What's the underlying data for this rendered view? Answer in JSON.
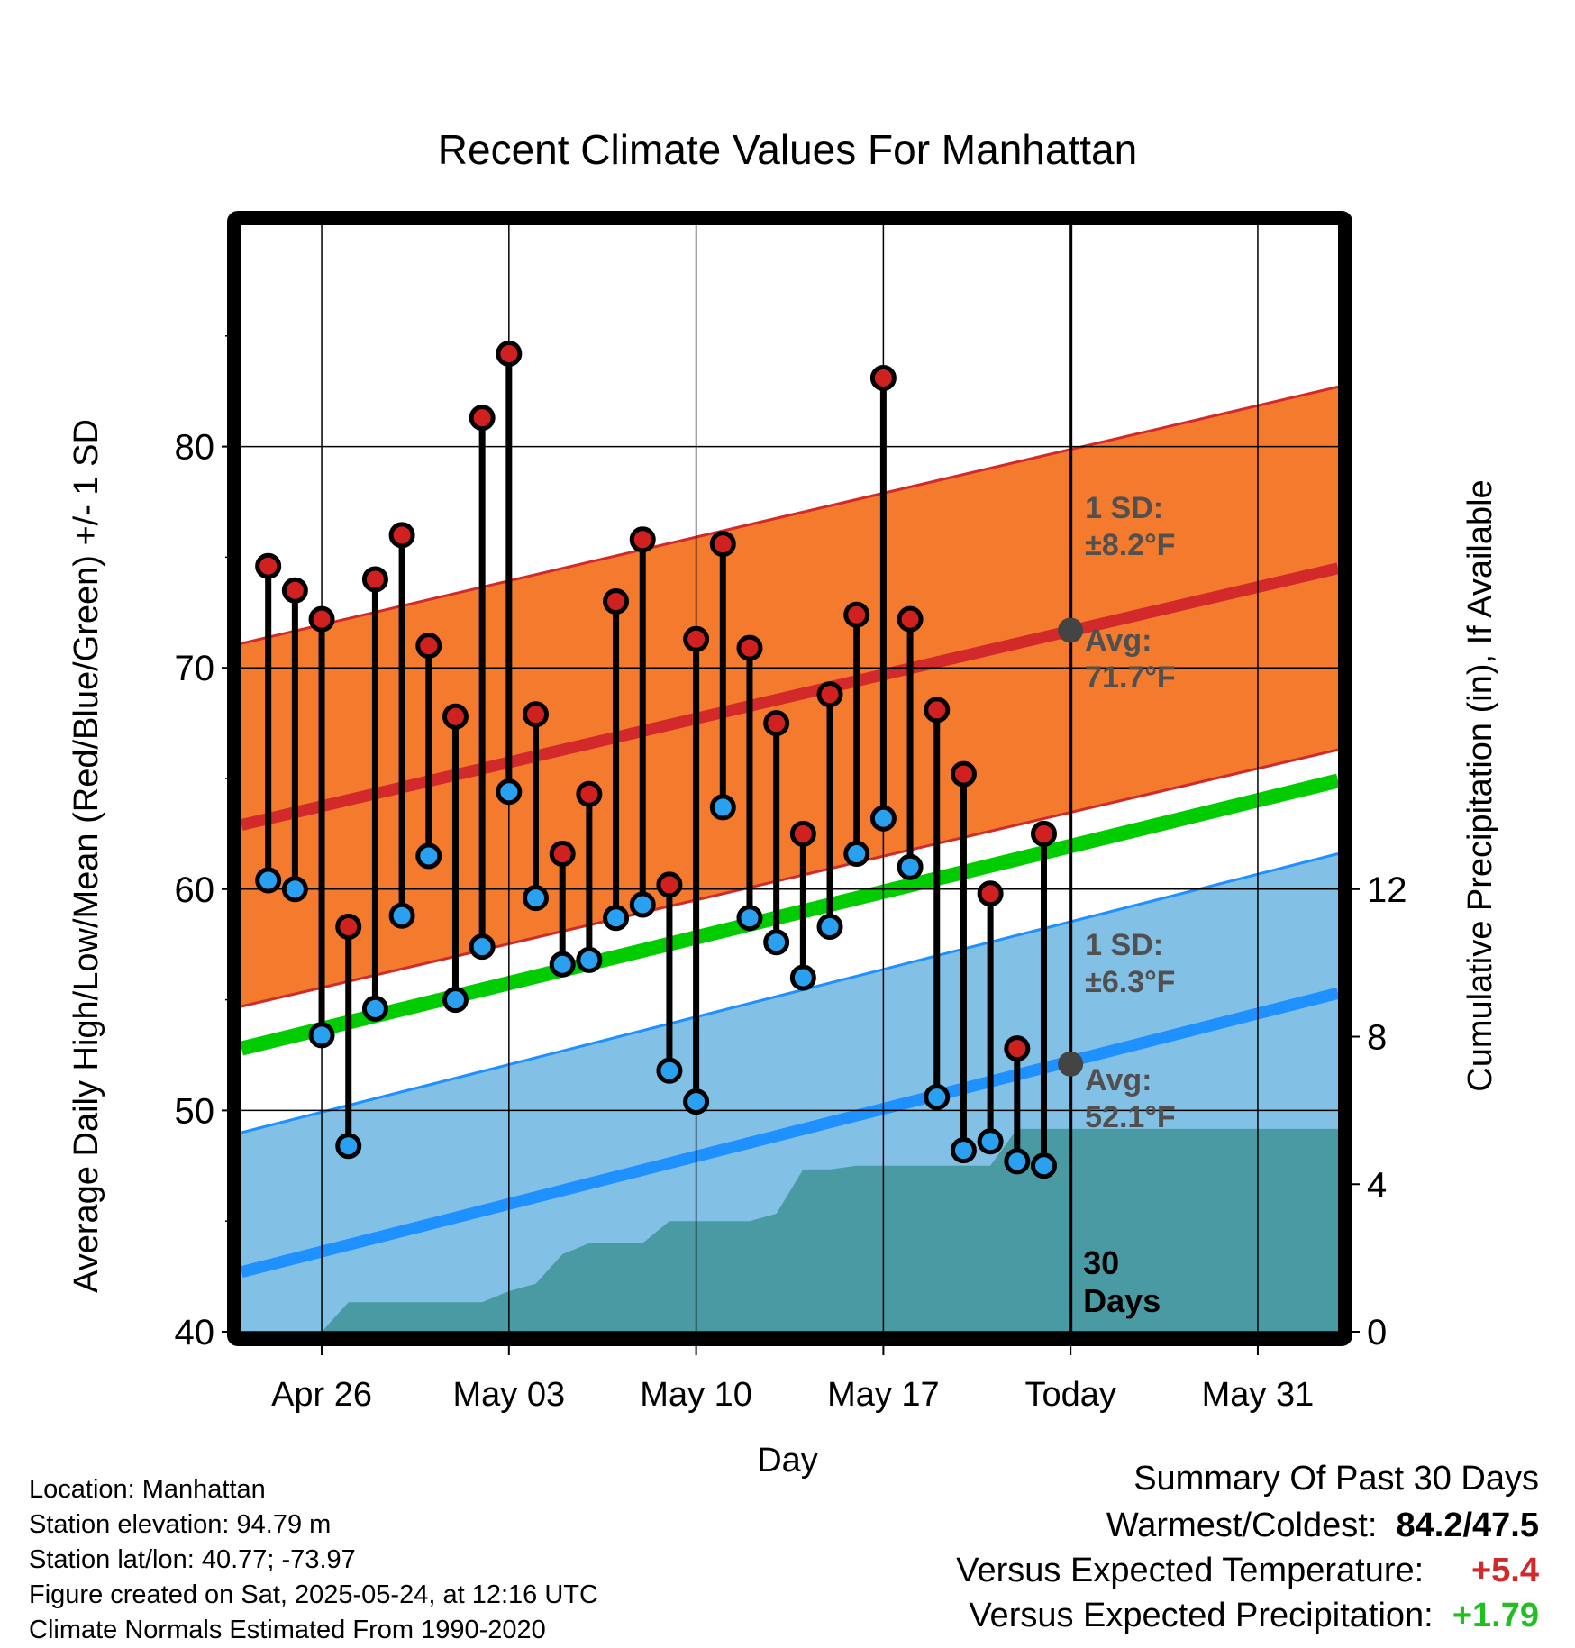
{
  "chart_data": {
    "type": "line",
    "title": "Recent Climate Values For Manhattan",
    "xlabel": "Day",
    "ylabel": "Average Daily High/Low/Mean (Red/Blue/Green) +/- 1 SD",
    "y2label": "Cumulative Precipitation (in), If Available",
    "ylim": [
      40,
      90
    ],
    "y2lim": [
      0,
      30
    ],
    "yticks": [
      40,
      50,
      60,
      70,
      80
    ],
    "y2ticks": [
      0,
      4,
      8,
      12
    ],
    "x_tick_labels": [
      "Apr 26",
      "May 03",
      "May 10",
      "May 17",
      "Today",
      "May 31"
    ],
    "x_tick_dates": [
      "2025-04-26",
      "2025-05-03",
      "2025-05-10",
      "2025-05-17",
      "2025-05-24",
      "2025-05-31"
    ],
    "xlim": [
      "2025-04-23",
      "2025-06-03"
    ],
    "today": "2025-05-24",
    "grid": true,
    "dates": [
      "2025-04-24",
      "2025-04-25",
      "2025-04-26",
      "2025-04-27",
      "2025-04-28",
      "2025-04-29",
      "2025-04-30",
      "2025-05-01",
      "2025-05-02",
      "2025-05-03",
      "2025-05-04",
      "2025-05-05",
      "2025-05-06",
      "2025-05-07",
      "2025-05-08",
      "2025-05-09",
      "2025-05-10",
      "2025-05-11",
      "2025-05-12",
      "2025-05-13",
      "2025-05-14",
      "2025-05-15",
      "2025-05-16",
      "2025-05-17",
      "2025-05-18",
      "2025-05-19",
      "2025-05-20",
      "2025-05-21",
      "2025-05-22",
      "2025-05-23"
    ],
    "high": [
      74.6,
      73.5,
      72.2,
      58.3,
      74.0,
      76.0,
      71.0,
      67.8,
      81.3,
      84.2,
      67.9,
      61.6,
      64.3,
      73.0,
      75.8,
      60.2,
      71.3,
      75.6,
      70.9,
      67.5,
      62.5,
      68.8,
      72.4,
      83.1,
      72.2,
      68.1,
      65.2,
      59.8,
      52.8,
      62.5
    ],
    "low": [
      60.4,
      60.0,
      53.4,
      48.4,
      54.6,
      58.8,
      61.5,
      55.0,
      57.4,
      64.4,
      59.6,
      56.6,
      56.8,
      58.7,
      59.3,
      51.8,
      50.4,
      63.7,
      58.7,
      57.6,
      56.0,
      58.3,
      61.6,
      63.2,
      61.0,
      50.6,
      48.2,
      48.6,
      47.7,
      47.5
    ],
    "normal_high": {
      "start": 62.9,
      "end": 74.5,
      "sd": 8.2,
      "today_value": 71.7
    },
    "normal_low": {
      "start": 42.7,
      "end": 55.3,
      "sd": 6.3,
      "today_value": 52.1
    },
    "normal_mean": {
      "start": 52.8,
      "end": 64.9
    },
    "precip_cumulative": [
      0.0,
      0.0,
      0.0,
      0.8,
      0.8,
      0.8,
      0.8,
      0.8,
      0.8,
      1.1,
      1.3,
      2.1,
      2.4,
      2.4,
      2.4,
      3.0,
      3.0,
      3.0,
      3.0,
      3.2,
      4.4,
      4.4,
      4.5,
      4.5,
      4.5,
      4.5,
      4.5,
      4.5,
      5.5,
      5.5
    ],
    "annotations": {
      "high_sd_line1": "1 SD:",
      "high_sd_line2": "±8.2°F",
      "high_avg_line1": "Avg:",
      "high_avg_line2": "71.7°F",
      "low_sd_line1": "1 SD:",
      "low_sd_line2": "±6.3°F",
      "low_avg_line1": "Avg:",
      "low_avg_line2": "52.1°F",
      "days_line1": "30",
      "days_line2": "Days"
    },
    "colors": {
      "high_band": "#f47a2e",
      "high_line": "#d22a2a",
      "low_band": "#82c0e6",
      "low_line": "#1e90ff",
      "mean_line": "#00cc00",
      "precip": "#4a9aa4",
      "high_dot": "#d02020",
      "low_dot": "#2aa0f0",
      "annotation": "#505050"
    }
  },
  "info": {
    "location": "Location: Manhattan",
    "elevation": "Station elevation: 94.79 m",
    "latlon": "Station lat/lon: 40.77; -73.97",
    "created": "Figure created on Sat, 2025-05-24, at 12:16 UTC",
    "normals": "Climate Normals Estimated From 1990-2020"
  },
  "summary": {
    "heading": "Summary Of Past 30 Days",
    "warmest_label": "Warmest/Coldest:",
    "warmest_value": "84.2/47.5",
    "temp_label": "Versus Expected Temperature:",
    "temp_value": "+5.4",
    "precip_label": "Versus Expected Precipitation:",
    "precip_value": "+1.79"
  }
}
